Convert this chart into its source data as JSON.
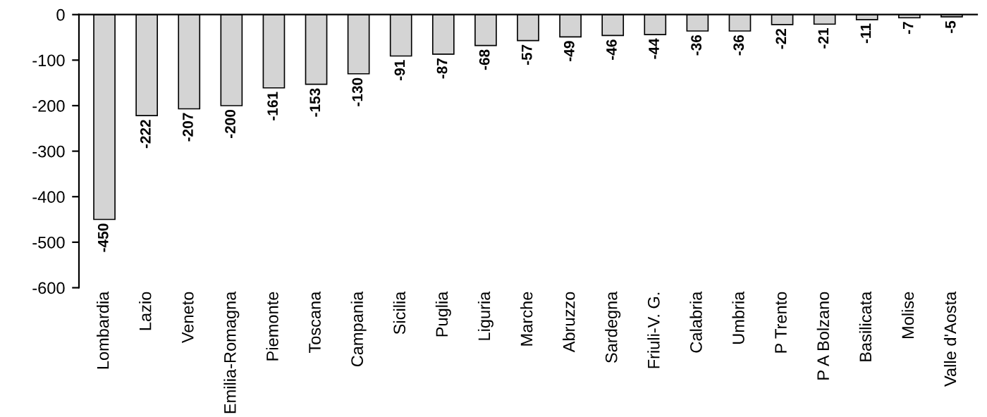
{
  "chart_data": {
    "type": "bar",
    "categories": [
      "Lombardia",
      "Lazio",
      "Veneto",
      "Emilia-Romagna",
      "Piemonte",
      "Toscana",
      "Campania",
      "Sicilia",
      "Puglia",
      "Liguria",
      "Marche",
      "Abruzzo",
      "Sardegna",
      "Friuli-V. G.",
      "Calabria",
      "Umbria",
      "P Trento",
      "P A Bolzano",
      "Basilicata",
      "Molise",
      "Valle d'Aosta"
    ],
    "values": [
      -450,
      -222,
      -207,
      -200,
      -161,
      -153,
      -130,
      -91,
      -87,
      -68,
      -57,
      -49,
      -46,
      -44,
      -36,
      -36,
      -22,
      -21,
      -11,
      -7,
      -5
    ],
    "color": "#d4d4d4",
    "ylim": [
      -600,
      0
    ],
    "yticks": [
      -600,
      -500,
      -400,
      -300,
      -200,
      -100,
      0
    ],
    "data_labels": true,
    "grid": false
  }
}
